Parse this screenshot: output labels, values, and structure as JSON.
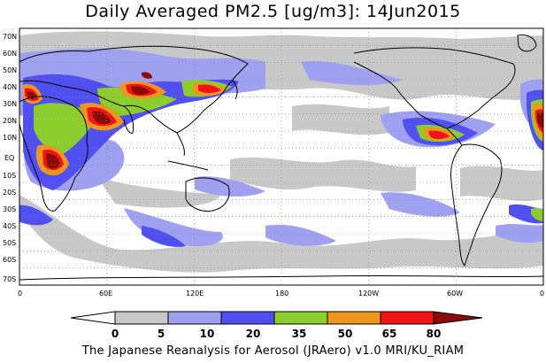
{
  "title": "Daily Averaged PM2.5 [ug/m3]: 14Jun2015",
  "footer": "The Japanese Reanalysis for Aerosol (JRAero) v1.0 MRI/KU_RIAM",
  "lat_labels": [
    "70N",
    "60N",
    "50N",
    "40N",
    "30N",
    "20N",
    "10N",
    "EQ",
    "10S",
    "20S",
    "30S",
    "40S",
    "50S",
    "60S",
    "70S"
  ],
  "lon_labels": [
    "0",
    "60E",
    "120E",
    "180",
    "120W",
    "60W",
    "0"
  ],
  "colorbar": {
    "ticks": [
      "0",
      "5",
      "10",
      "20",
      "35",
      "50",
      "65",
      "80"
    ],
    "colors": [
      "#ffffff",
      "#c8c8c8",
      "#a0a0f0",
      "#5050f0",
      "#8ccd2d",
      "#f0961e",
      "#f01414",
      "#8c0a0a"
    ]
  },
  "map_data": {
    "quantity": "PM2.5",
    "units": "ug/m3",
    "date": "14Jun2015",
    "lat_range": [
      -75,
      75
    ],
    "lon_range": [
      0,
      360
    ],
    "levels": [
      0,
      5,
      10,
      20,
      35,
      50,
      65,
      80
    ]
  }
}
